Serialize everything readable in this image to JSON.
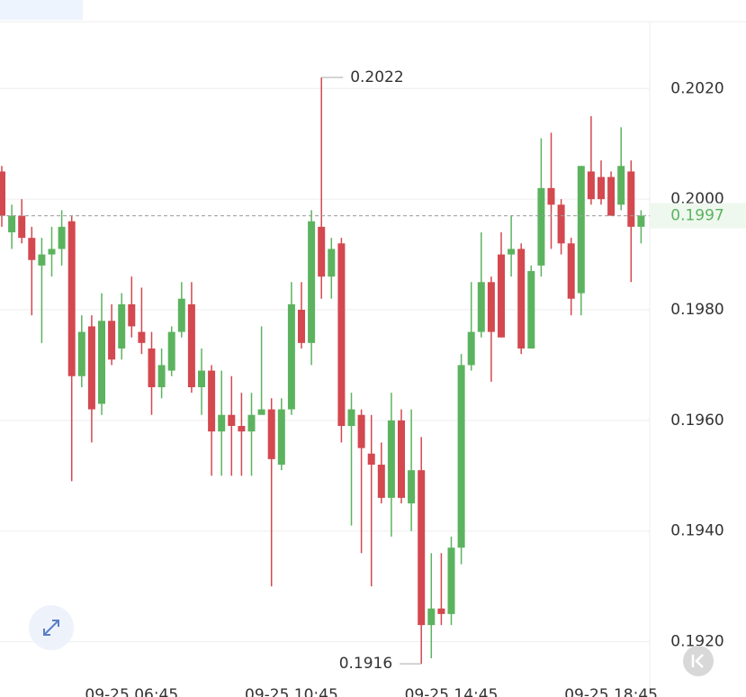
{
  "chart_data": {
    "type": "candlestick",
    "categories": [
      null,
      null,
      null,
      null,
      null,
      null,
      null,
      null,
      null,
      null,
      null,
      null,
      null,
      "09-25 06:45",
      null,
      null,
      null,
      null,
      null,
      null,
      null,
      null,
      null,
      null,
      null,
      null,
      null,
      null,
      null,
      "09-25 10:45",
      null,
      null,
      null,
      null,
      null,
      null,
      null,
      null,
      null,
      null,
      null,
      null,
      null,
      null,
      null,
      "09-25 14:45",
      null,
      null,
      null,
      null,
      null,
      null,
      null,
      null,
      null,
      null,
      null,
      null,
      null,
      null,
      null,
      "09-25 18:45",
      null,
      null,
      null
    ],
    "open": [
      0.2005,
      0.1994,
      0.1997,
      0.1993,
      0.1988,
      0.199,
      0.1991,
      0.1996,
      0.1968,
      0.1977,
      0.1963,
      0.1978,
      0.1973,
      0.1981,
      0.1976,
      0.1973,
      0.1966,
      0.1969,
      0.1976,
      0.1981,
      0.1966,
      0.1969,
      0.1958,
      0.1961,
      0.1959,
      0.1958,
      0.1961,
      0.1962,
      0.1952,
      0.1962,
      0.198,
      0.1974,
      0.1995,
      0.1986,
      0.1992,
      0.1959,
      0.1961,
      0.1954,
      0.1952,
      0.1946,
      0.196,
      0.1945,
      0.1951,
      0.1923,
      0.1926,
      0.1925,
      0.1937,
      0.197,
      0.1976,
      0.1985,
      0.199,
      0.199,
      0.1991,
      0.1973,
      0.1988,
      0.2002,
      0.1999,
      0.1992,
      0.1983,
      0.2005,
      0.2004,
      0.2004,
      0.1999,
      0.2005,
      0.1995
    ],
    "high": [
      0.2006,
      0.1999,
      0.2,
      0.1995,
      0.1993,
      0.1995,
      0.1998,
      0.1997,
      0.1979,
      0.1979,
      0.1983,
      0.1981,
      0.1983,
      0.1986,
      0.1984,
      0.1976,
      0.1973,
      0.1977,
      0.1985,
      0.1985,
      0.1973,
      0.197,
      0.1969,
      0.1968,
      0.1965,
      0.1965,
      0.1977,
      0.1964,
      0.1964,
      0.1985,
      0.1985,
      0.1998,
      0.2022,
      0.1993,
      0.1993,
      0.1965,
      0.1962,
      0.1961,
      0.1956,
      0.1965,
      0.1962,
      0.1962,
      0.1957,
      0.1936,
      0.1936,
      0.1939,
      0.1972,
      0.1985,
      0.1994,
      0.1986,
      0.1994,
      0.1997,
      0.1992,
      0.1988,
      0.2011,
      0.2012,
      0.2,
      0.1993,
      0.2006,
      0.2015,
      0.2007,
      0.2005,
      0.2013,
      0.2007,
      0.1998
    ],
    "low": [
      0.1995,
      0.1991,
      0.1992,
      0.1979,
      0.1974,
      0.1986,
      0.1988,
      0.1949,
      0.1966,
      0.1956,
      0.1961,
      0.197,
      0.1971,
      0.1975,
      0.1972,
      0.1961,
      0.1964,
      0.1968,
      0.1975,
      0.1965,
      0.1961,
      0.195,
      0.195,
      0.195,
      0.195,
      0.195,
      0.1961,
      0.193,
      0.1951,
      0.1961,
      0.1973,
      0.197,
      0.1982,
      0.1982,
      0.1956,
      0.1941,
      0.1936,
      0.193,
      0.1945,
      0.1939,
      0.1945,
      0.194,
      0.1916,
      0.1917,
      0.1923,
      0.1923,
      0.1934,
      0.1969,
      0.1975,
      0.1967,
      0.1975,
      0.1986,
      0.1972,
      0.1973,
      0.1986,
      0.1991,
      0.199,
      0.1979,
      0.1979,
      0.1999,
      0.1999,
      0.1997,
      0.1998,
      0.1985,
      0.1992
    ],
    "close": [
      0.1997,
      0.1997,
      0.1993,
      0.1989,
      0.199,
      0.1991,
      0.1995,
      0.1968,
      0.1976,
      0.1962,
      0.1978,
      0.1971,
      0.1981,
      0.1977,
      0.1974,
      0.1966,
      0.197,
      0.1976,
      0.1982,
      0.1966,
      0.1969,
      0.1958,
      0.1961,
      0.1959,
      0.1958,
      0.1961,
      0.1962,
      0.1953,
      0.1962,
      0.1981,
      0.1974,
      0.1996,
      0.1986,
      0.1991,
      0.1959,
      0.1962,
      0.1955,
      0.1952,
      0.1946,
      0.196,
      0.1946,
      0.1951,
      0.1923,
      0.1926,
      0.1925,
      0.1937,
      0.197,
      0.1976,
      0.1985,
      0.1976,
      0.1975,
      0.1991,
      0.1973,
      0.1987,
      0.2002,
      0.1999,
      0.1992,
      0.1982,
      0.2006,
      0.2,
      0.2,
      0.1997,
      0.2006,
      0.1995,
      0.1997
    ],
    "up_color": "#5cb35f",
    "down_color": "#d4484f",
    "ylim": [
      0.191,
      0.2036
    ],
    "yticks": [
      {
        "value": 0.192,
        "label": "0.1920"
      },
      {
        "value": 0.194,
        "label": "0.1940"
      },
      {
        "value": 0.196,
        "label": "0.1960"
      },
      {
        "value": 0.198,
        "label": "0.1980"
      },
      {
        "value": 0.2,
        "label": "0.2000"
      },
      {
        "value": 0.202,
        "label": "0.2020"
      }
    ],
    "grid": true,
    "max_annotation": {
      "value": 0.2022,
      "label": "0.2022"
    },
    "min_annotation": {
      "value": 0.1916,
      "label": "0.1916"
    },
    "last_price": {
      "value": 0.1997,
      "label": "0.1997"
    }
  }
}
